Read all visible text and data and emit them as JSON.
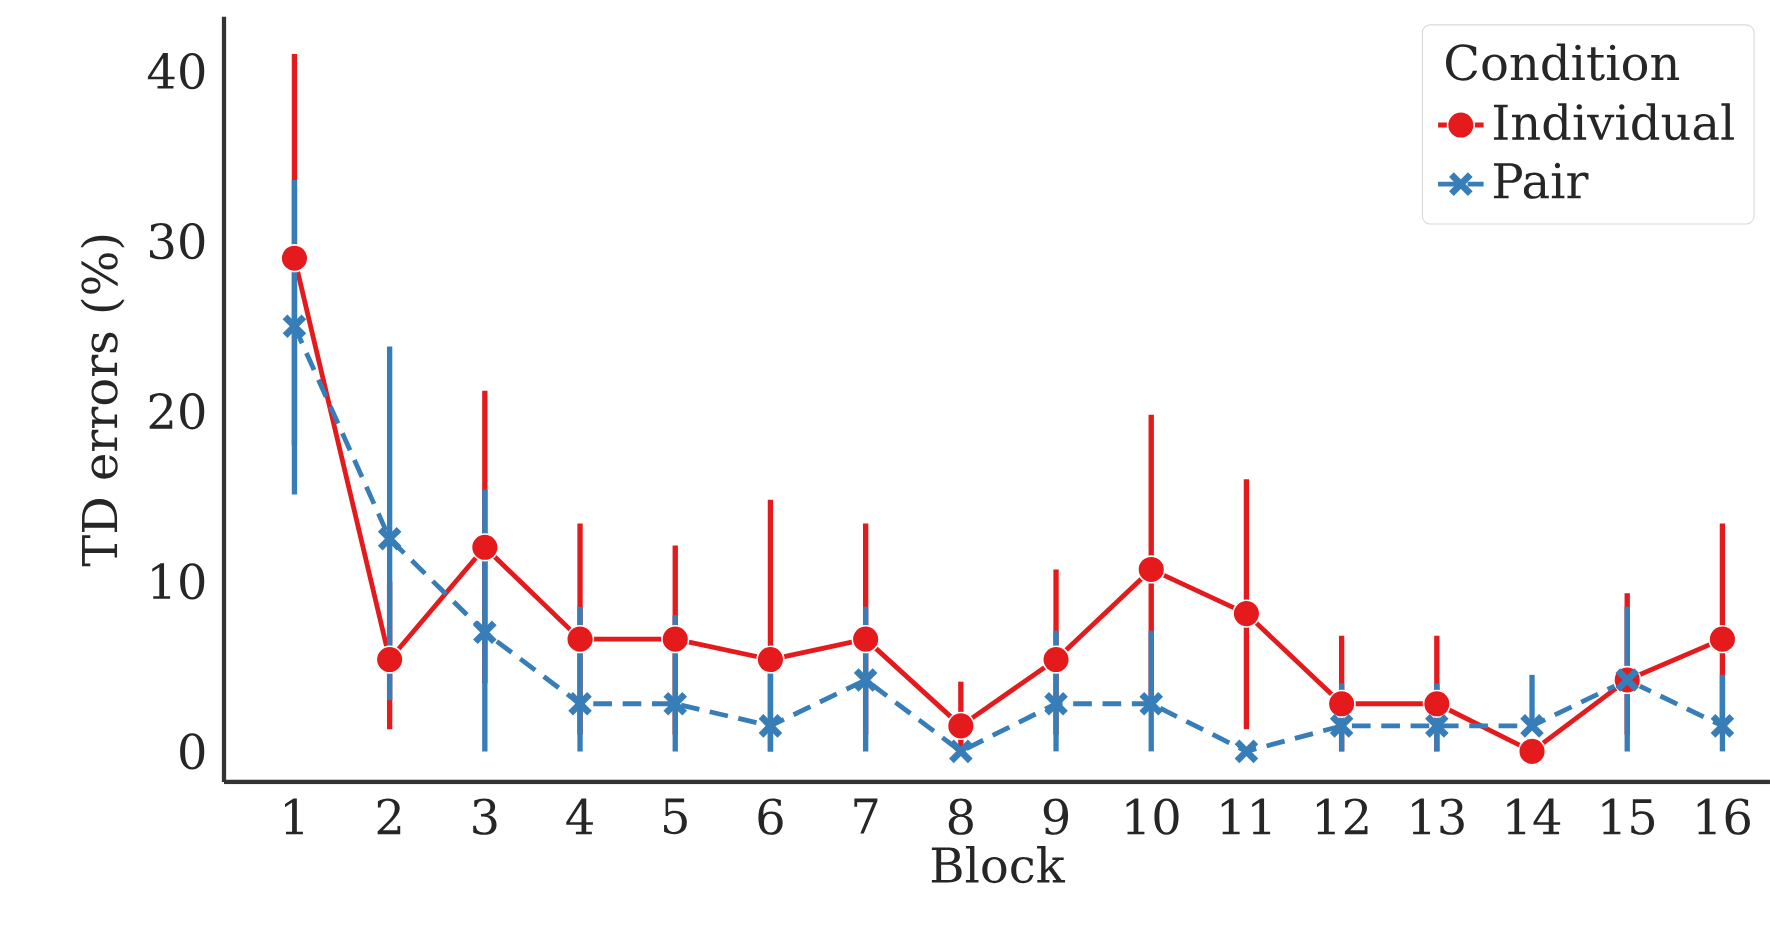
{
  "chart_data": {
    "type": "line",
    "xlabel": "Block",
    "ylabel": "TD errors (%)",
    "legend_title": "Condition",
    "legend": "top right",
    "grid": false,
    "categories": [
      "1",
      "2",
      "3",
      "4",
      "5",
      "6",
      "7",
      "8",
      "9",
      "10",
      "11",
      "12",
      "13",
      "14",
      "15",
      "16"
    ],
    "ylim": [
      -1.8,
      43.2
    ],
    "yticks": [
      0,
      10,
      20,
      30,
      40
    ],
    "series": [
      {
        "name": "Individual",
        "color": "#e41a1c",
        "marker": "circle",
        "line_style": "solid",
        "values": [
          29,
          5.4,
          12,
          6.6,
          6.6,
          5.4,
          6.6,
          1.5,
          5.4,
          10.7,
          8.1,
          2.8,
          2.8,
          0,
          4.2,
          6.6
        ],
        "errors": [
          [
            18,
            41
          ],
          [
            1.3,
            10
          ],
          [
            4,
            21.2
          ],
          [
            1,
            13.4
          ],
          [
            1,
            12.1
          ],
          [
            0,
            14.8
          ],
          [
            1,
            13.4
          ],
          [
            0,
            4.1
          ],
          [
            1,
            10.7
          ],
          [
            3,
            19.8
          ],
          [
            1.3,
            16
          ],
          [
            0,
            6.8
          ],
          [
            0,
            6.8
          ],
          null,
          [
            1,
            9.3
          ],
          [
            1,
            13.4
          ]
        ]
      },
      {
        "name": "Pair",
        "color": "#377eb8",
        "marker": "cross",
        "line_style": "dashed",
        "values": [
          25,
          12.5,
          7,
          2.8,
          2.8,
          1.5,
          4.2,
          0,
          2.8,
          2.8,
          0,
          1.5,
          1.5,
          1.5,
          4.2,
          1.5
        ],
        "errors": [
          [
            15.1,
            33.6
          ],
          [
            3,
            23.8
          ],
          [
            0,
            15.4
          ],
          [
            0,
            8.5
          ],
          [
            0,
            8
          ],
          [
            0,
            5
          ],
          [
            0,
            8.5
          ],
          null,
          [
            0,
            7.1
          ],
          [
            0,
            7.1
          ],
          null,
          [
            0,
            4
          ],
          [
            0,
            4
          ],
          [
            1.5,
            4.5
          ],
          [
            0,
            8.5
          ],
          [
            0,
            4.5
          ]
        ]
      }
    ]
  }
}
